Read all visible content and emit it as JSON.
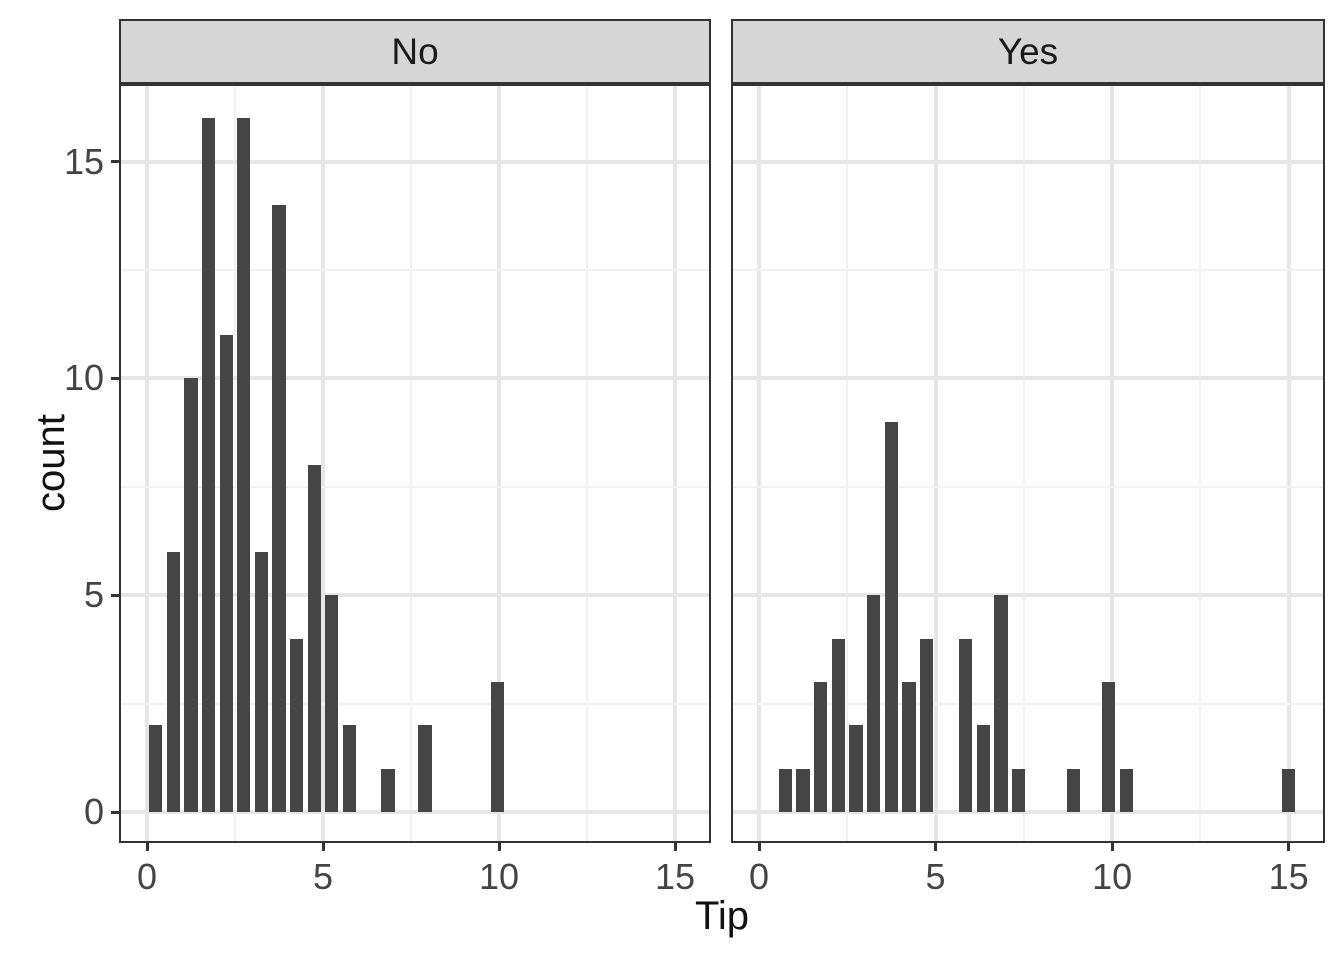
{
  "colors": {
    "bar_fill": "#454545",
    "strip_background": "#D6D6D6",
    "panel_border": "#333333",
    "grid_major": "#E6E6E6",
    "grid_minor": "#F1F1F1",
    "tick_mark": "#333333",
    "tick_label_text": "#444444",
    "axis_title_text": "#111111",
    "strip_text": "#1A1A1A",
    "panel_background": "#FFFFFF"
  },
  "chart_data": {
    "type": "bar",
    "subtype": "faceted-histogram",
    "title": "",
    "xlabel": "Tip",
    "ylabel": "count",
    "facet_labels": [
      "No",
      "Yes"
    ],
    "binwidth": 0.5,
    "bar_visual_width": 0.38,
    "x_ticks": [
      0,
      5,
      10,
      15
    ],
    "y_ticks": [
      0,
      5,
      10,
      15
    ],
    "x_minor_gridlines": [
      2.5,
      7.5,
      12.5
    ],
    "y_minor_gridlines": [
      2.5,
      7.5,
      12.5
    ],
    "xlim": [
      -0.78,
      16.05
    ],
    "ylim": [
      -0.72,
      16.8
    ],
    "grid": "on",
    "legend_position": "none",
    "series": [
      {
        "name": "No",
        "x": [
          0.25,
          0.75,
          1.25,
          1.75,
          2.25,
          2.75,
          3.25,
          3.75,
          4.25,
          4.75,
          5.25,
          5.75,
          6.85,
          7.9,
          9.95
        ],
        "counts": [
          2,
          6,
          10,
          16,
          11,
          16,
          6,
          14,
          4,
          8,
          5,
          2,
          1,
          2,
          3
        ]
      },
      {
        "name": "Yes",
        "x": [
          0.75,
          1.25,
          1.75,
          2.25,
          2.75,
          3.25,
          3.75,
          4.25,
          4.75,
          5.85,
          6.35,
          6.85,
          7.35,
          8.9,
          9.9,
          10.4,
          15.0
        ],
        "counts": [
          1,
          1,
          3,
          4,
          2,
          5,
          9,
          3,
          4,
          4,
          2,
          5,
          1,
          1,
          3,
          1,
          1
        ]
      }
    ]
  }
}
